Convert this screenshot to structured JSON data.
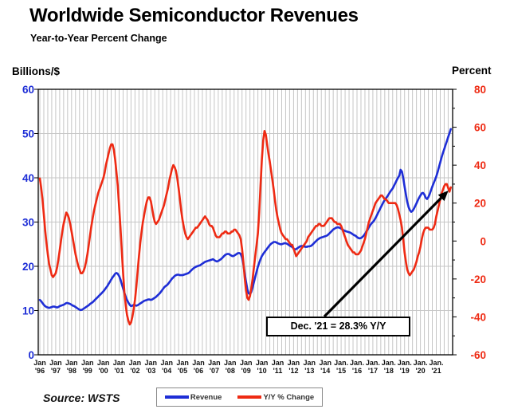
{
  "page": {
    "title": "Worldwide Semiconductor Revenues",
    "subtitle": "Year-to-Year Percent Change"
  },
  "axes": {
    "left_title": "Billions/$",
    "right_title": "Percent"
  },
  "annotation": {
    "text": "Dec. '21 = 28.3% Y/Y"
  },
  "legend": {
    "items": [
      {
        "label": "Revenue",
        "color": "#1e2ed6"
      },
      {
        "label": "Y/Y % Change",
        "color": "#ee2a13"
      }
    ]
  },
  "source": "Source: WSTS",
  "colors": {
    "revenue": "#1e2ed6",
    "yoy": "#ee2a13",
    "grid": "#c6c6c6",
    "border": "#000000",
    "left_text": "#1e2ed6",
    "right_text": "#ee2a13",
    "xlabel_text": "#111111",
    "arrow": "#000000"
  },
  "chart_data": {
    "type": "line",
    "title": "Worldwide Semiconductor Revenues",
    "subtitle": "Year-to-Year Percent Change",
    "x_unit": "month",
    "x_range": [
      "Jan 1996",
      "Dec 2021"
    ],
    "x_tick_labels": [
      {
        "m": "Jan",
        "y": "'96"
      },
      {
        "m": "Jan",
        "y": "'97"
      },
      {
        "m": "Jan",
        "y": "'98"
      },
      {
        "m": "Jan",
        "y": "'99"
      },
      {
        "m": "Jan",
        "y": "'00"
      },
      {
        "m": "Jan",
        "y": "'01"
      },
      {
        "m": "Jan",
        "y": "'02"
      },
      {
        "m": "Jan",
        "y": "'03"
      },
      {
        "m": "Jan",
        "y": "'04"
      },
      {
        "m": "Jan",
        "y": "'05"
      },
      {
        "m": "Jan",
        "y": "'06"
      },
      {
        "m": "Jan",
        "y": "'07"
      },
      {
        "m": "Jan",
        "y": "'08"
      },
      {
        "m": "Jan",
        "y": "'09"
      },
      {
        "m": "Jan",
        "y": "'10"
      },
      {
        "m": "Jan",
        "y": "'11"
      },
      {
        "m": "Jan",
        "y": "'12"
      },
      {
        "m": "Jan",
        "y": "'13"
      },
      {
        "m": "Jan",
        "y": "'14"
      },
      {
        "m": "Jan.",
        "y": "'15"
      },
      {
        "m": "Jan.",
        "y": "'16"
      },
      {
        "m": "Jan.",
        "y": "'17"
      },
      {
        "m": "Jan.",
        "y": "'18"
      },
      {
        "m": "Jan.",
        "y": "'19"
      },
      {
        "m": "Jan.",
        "y": "'20"
      },
      {
        "m": "Jan.",
        "y": "'21"
      }
    ],
    "left_axis": {
      "label": "Billions/$",
      "min": 0,
      "max": 60,
      "ticks": [
        0,
        10,
        20,
        30,
        40,
        50,
        60
      ]
    },
    "right_axis": {
      "label": "Percent",
      "min": -60,
      "max": 80,
      "ticks": [
        -60,
        -40,
        -20,
        0,
        20,
        40,
        60,
        80
      ]
    },
    "gridlines": {
      "vertical": "quarterly",
      "horizontal": "every 10 units of left axis"
    },
    "legend_position": "bottom",
    "annotation": {
      "text": "Dec. '21 = 28.3% Y/Y",
      "points_to": "Dec 2021 value of Y/Y % Change line"
    },
    "series": [
      {
        "name": "Revenue",
        "axis": "left",
        "color": "#1e2ed6",
        "unit": "US$ billions/month",
        "values": [
          12.4,
          12.1,
          11.7,
          11.3,
          11.0,
          10.8,
          10.7,
          10.6,
          10.7,
          10.8,
          10.9,
          10.9,
          10.8,
          10.7,
          10.8,
          11.0,
          11.1,
          11.2,
          11.3,
          11.5,
          11.7,
          11.7,
          11.6,
          11.5,
          11.3,
          11.1,
          11.0,
          10.8,
          10.6,
          10.4,
          10.2,
          10.1,
          10.2,
          10.4,
          10.6,
          10.8,
          11.0,
          11.2,
          11.5,
          11.7,
          11.9,
          12.2,
          12.5,
          12.8,
          13.1,
          13.4,
          13.7,
          14.0,
          14.3,
          14.7,
          15.1,
          15.5,
          16.0,
          16.5,
          17.0,
          17.5,
          17.9,
          18.3,
          18.5,
          18.3,
          17.8,
          17.0,
          16.0,
          15.0,
          14.0,
          13.1,
          12.4,
          11.8,
          11.3,
          11.0,
          11.1,
          11.3,
          11.2,
          11.1,
          11.2,
          11.4,
          11.6,
          11.8,
          12.0,
          12.2,
          12.3,
          12.4,
          12.5,
          12.5,
          12.4,
          12.5,
          12.7,
          12.9,
          13.1,
          13.4,
          13.7,
          14.0,
          14.4,
          14.8,
          15.2,
          15.5,
          15.7,
          16.0,
          16.4,
          16.8,
          17.2,
          17.5,
          17.8,
          18.0,
          18.1,
          18.1,
          18.0,
          18.0,
          18.0,
          18.1,
          18.2,
          18.3,
          18.4,
          18.6,
          18.9,
          19.2,
          19.5,
          19.7,
          19.9,
          20.0,
          20.1,
          20.2,
          20.4,
          20.6,
          20.8,
          21.0,
          21.1,
          21.2,
          21.3,
          21.4,
          21.5,
          21.6,
          21.4,
          21.2,
          21.1,
          21.2,
          21.4,
          21.6,
          21.9,
          22.2,
          22.5,
          22.7,
          22.8,
          22.8,
          22.6,
          22.4,
          22.3,
          22.4,
          22.6,
          22.8,
          23.0,
          23.0,
          22.8,
          22.0,
          20.5,
          18.5,
          16.5,
          14.8,
          13.9,
          13.7,
          14.2,
          15.2,
          16.4,
          17.6,
          18.8,
          19.9,
          20.8,
          21.6,
          22.3,
          22.8,
          23.2,
          23.6,
          24.0,
          24.4,
          24.8,
          25.1,
          25.3,
          25.5,
          25.5,
          25.4,
          25.2,
          25.1,
          25.0,
          25.0,
          25.1,
          25.2,
          25.2,
          25.1,
          24.9,
          24.7,
          24.5,
          24.4,
          24.0,
          23.8,
          23.9,
          24.1,
          24.3,
          24.5,
          24.6,
          24.6,
          24.5,
          24.4,
          24.4,
          24.5,
          24.5,
          24.6,
          24.8,
          25.1,
          25.4,
          25.7,
          26.0,
          26.2,
          26.4,
          26.5,
          26.6,
          26.7,
          26.8,
          26.9,
          27.1,
          27.4,
          27.7,
          28.0,
          28.3,
          28.5,
          28.7,
          28.8,
          28.8,
          28.7,
          28.5,
          28.3,
          28.1,
          28.0,
          27.9,
          27.8,
          27.7,
          27.6,
          27.4,
          27.2,
          27.0,
          26.9,
          26.6,
          26.4,
          26.3,
          26.4,
          26.6,
          26.9,
          27.3,
          27.8,
          28.3,
          28.8,
          29.3,
          29.7,
          30.0,
          30.4,
          30.9,
          31.5,
          32.1,
          32.7,
          33.3,
          33.9,
          34.5,
          35.0,
          35.4,
          35.8,
          36.3,
          36.8,
          37.2,
          37.6,
          38.2,
          38.8,
          39.4,
          40.0,
          40.5,
          41.8,
          41.4,
          40.0,
          38.0,
          36.2,
          34.6,
          33.4,
          32.7,
          32.3,
          32.5,
          33.0,
          33.6,
          34.2,
          34.9,
          35.5,
          36.0,
          36.5,
          36.6,
          36.2,
          35.5,
          35.2,
          35.6,
          36.3,
          37.2,
          38.0,
          38.8,
          39.5,
          40.3,
          41.3,
          42.4,
          43.5,
          44.6,
          45.6,
          46.5,
          47.4,
          48.3,
          49.2,
          50.1,
          51.0
        ]
      },
      {
        "name": "Y/Y % Change",
        "axis": "right",
        "color": "#ee2a13",
        "unit": "percent",
        "values": [
          33,
          28,
          22,
          14,
          6,
          -1,
          -7,
          -12,
          -15,
          -18,
          -19,
          -18,
          -17,
          -14,
          -10,
          -5,
          0,
          5,
          9,
          12,
          15,
          14,
          12,
          9,
          5,
          1,
          -3,
          -7,
          -10,
          -13,
          -15,
          -17,
          -17,
          -16,
          -14,
          -11,
          -7,
          -2,
          3,
          8,
          12,
          16,
          19,
          22,
          25,
          27,
          29,
          31,
          33,
          36,
          40,
          43,
          46,
          49,
          51,
          51,
          48,
          43,
          36,
          29,
          18,
          7,
          -5,
          -17,
          -27,
          -34,
          -39,
          -42,
          -44,
          -43,
          -40,
          -36,
          -31,
          -24,
          -16,
          -8,
          -1,
          5,
          10,
          14,
          18,
          21,
          23,
          23,
          21,
          17,
          13,
          10,
          9,
          10,
          11,
          13,
          15,
          17,
          19,
          22,
          25,
          28,
          32,
          35,
          38,
          40,
          39,
          37,
          33,
          28,
          22,
          16,
          11,
          7,
          4,
          2,
          1,
          2,
          3,
          4,
          5,
          6,
          7,
          7,
          8,
          9,
          10,
          11,
          12,
          13,
          12,
          11,
          9,
          8,
          8,
          7,
          5,
          3,
          2,
          2,
          2,
          3,
          4,
          4,
          5,
          5,
          4,
          4,
          4,
          5,
          5,
          6,
          6,
          5,
          4,
          3,
          1,
          -4,
          -11,
          -19,
          -26,
          -30,
          -31,
          -29,
          -25,
          -20,
          -14,
          -8,
          -2,
          4,
          15,
          29,
          43,
          53,
          58,
          56,
          51,
          46,
          42,
          37,
          32,
          27,
          21,
          16,
          12,
          9,
          6,
          4,
          3,
          2,
          1,
          1,
          0,
          -1,
          -2,
          -2,
          -4,
          -6,
          -8,
          -7,
          -6,
          -5,
          -4,
          -3,
          -2,
          -1,
          0,
          2,
          3,
          4,
          5,
          6,
          7,
          8,
          8,
          9,
          9,
          8,
          8,
          8,
          9,
          10,
          11,
          12,
          12,
          12,
          11,
          10,
          10,
          9,
          9,
          9,
          8,
          6,
          4,
          2,
          0,
          -2,
          -3,
          -4,
          -5,
          -6,
          -6,
          -7,
          -7,
          -7,
          -6,
          -5,
          -3,
          -1,
          1,
          4,
          7,
          10,
          12,
          14,
          16,
          18,
          20,
          21,
          22,
          23,
          24,
          24,
          23,
          22,
          22,
          21,
          20,
          20,
          20,
          20,
          20,
          20,
          19,
          17,
          14,
          11,
          7,
          1,
          -6,
          -11,
          -15,
          -17,
          -18,
          -17,
          -16,
          -15,
          -13,
          -11,
          -8,
          -6,
          -3,
          1,
          4,
          6,
          7,
          7,
          7,
          6,
          6,
          6,
          7,
          9,
          13,
          16,
          19,
          22,
          25,
          27,
          29,
          30,
          30,
          28,
          26,
          28.3
        ]
      }
    ]
  }
}
